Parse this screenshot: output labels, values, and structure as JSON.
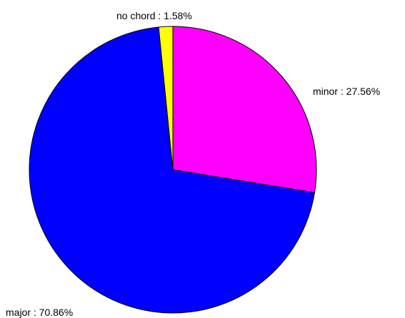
{
  "chart_data": {
    "type": "pie",
    "slices": [
      {
        "category": "minor",
        "label": "minor : 27.56%",
        "value": 27.56,
        "color": "#ff00ff"
      },
      {
        "category": "major",
        "label": "major : 70.86%",
        "value": 70.86,
        "color": "#0000ff"
      },
      {
        "category": "no chord",
        "label": "no chord : 1.58%",
        "value": 1.58,
        "color": "#ffff00"
      }
    ]
  }
}
